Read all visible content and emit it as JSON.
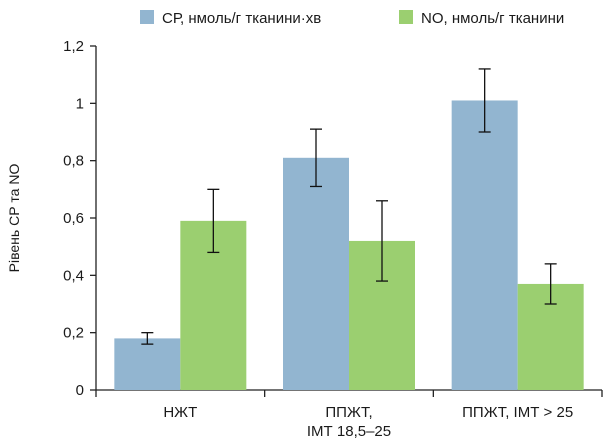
{
  "chart_data": {
    "type": "bar",
    "title": "",
    "xlabel": "",
    "ylabel": "Рівень СР та NO",
    "ylim": [
      0,
      1.2
    ],
    "yticks": [
      0,
      0.2,
      0.4,
      0.6,
      0.8,
      1,
      1.2
    ],
    "ytick_labels": [
      "0",
      "0,2",
      "0,4",
      "0,6",
      "0,8",
      "1",
      "1,2"
    ],
    "categories": [
      [
        "НЖТ"
      ],
      [
        "ППЖТ,",
        "ІМТ 18,5–25"
      ],
      [
        "ППЖТ, ІМТ > 25"
      ]
    ],
    "legend_position": "top",
    "grid": false,
    "series": [
      {
        "name": "СР, нмоль/г тканини·хв",
        "color": "#92b5d0",
        "values": [
          0.18,
          0.81,
          1.01
        ],
        "error_low": [
          0.16,
          0.71,
          0.9
        ],
        "error_high": [
          0.2,
          0.91,
          1.12
        ]
      },
      {
        "name": "NO, нмоль/г тканини",
        "color": "#9bcf70",
        "values": [
          0.59,
          0.52,
          0.37
        ],
        "error_low": [
          0.48,
          0.38,
          0.3
        ],
        "error_high": [
          0.7,
          0.66,
          0.44
        ]
      }
    ]
  }
}
